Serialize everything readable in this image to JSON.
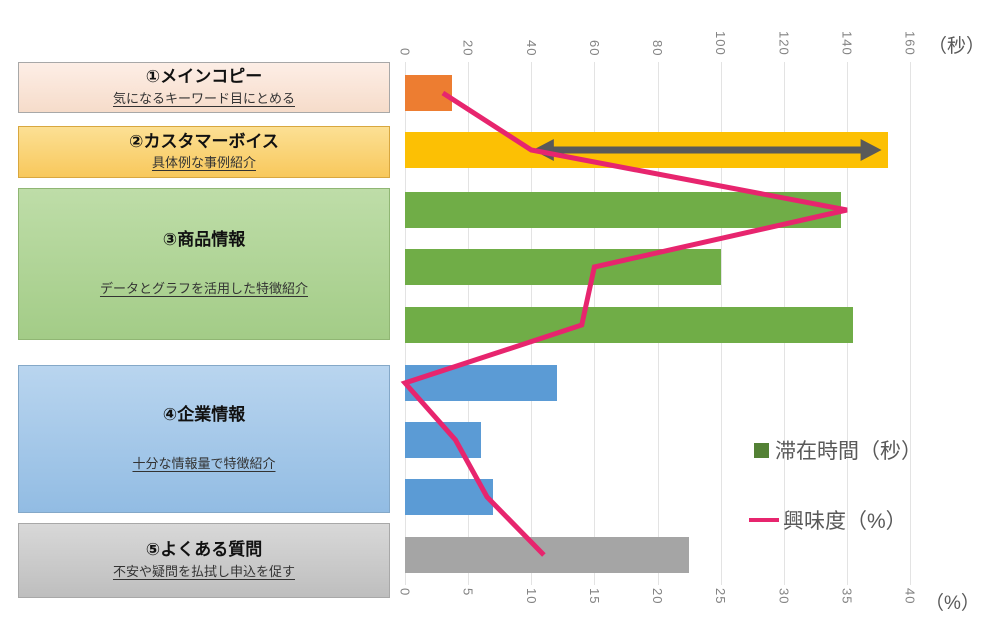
{
  "panel": {
    "sections": [
      {
        "title": "①メインコピー",
        "subtitle": "気になるキーワード目にとめる",
        "size": "small",
        "bg_top": "#fdeee6",
        "bg_bottom": "#f6dcca",
        "border": "#a8a8a8"
      },
      {
        "title": "②カスタマーボイス",
        "subtitle": "具体例な事例紹介",
        "size": "small",
        "bg_top": "#fce094",
        "bg_bottom": "#f8c85c",
        "border": "#d8a73f"
      },
      {
        "title": "③商品情報",
        "subtitle": "データとグラフを活用した特徴紹介",
        "size": "large",
        "bg_top": "#bedda8",
        "bg_bottom": "#a3cc87",
        "border": "#90b674"
      },
      {
        "title": "④企業情報",
        "subtitle": "十分な情報量で特徴紹介",
        "size": "large",
        "bg_top": "#b9d5ef",
        "bg_bottom": "#92bce3",
        "border": "#84a8c8"
      },
      {
        "title": "⑤よくある質問",
        "subtitle": "不安や疑問を払拭し申込を促す",
        "size": "small",
        "bg_top": "#d8d8d8",
        "bg_bottom": "#bebebe",
        "border": "#a8a8a8"
      }
    ]
  },
  "chart_data": {
    "type": "bar",
    "subtype": "horizontal-bars-with-line-overlay-dual-axis",
    "title": "",
    "top_axis": {
      "label": "（秒）",
      "ticks": [
        0,
        20,
        40,
        60,
        80,
        100,
        120,
        140,
        160
      ],
      "range": [
        0,
        160
      ]
    },
    "bottom_axis": {
      "label": "（%）",
      "ticks": [
        0,
        5,
        10,
        15,
        20,
        25,
        30,
        35,
        40
      ],
      "range": [
        0,
        40
      ]
    },
    "categories": [
      "①メインコピー",
      "②カスタマーボイス",
      "③商品情報",
      "③商品情報",
      "③商品情報",
      "④企業情報",
      "④企業情報",
      "④企業情報",
      "⑤よくある質問"
    ],
    "series": [
      {
        "name": "滞在時間（秒）",
        "type": "bar",
        "axis": "top",
        "unit": "秒",
        "values": [
          15,
          153,
          138,
          100,
          142,
          48,
          24,
          28,
          90
        ],
        "bar_colors": [
          "#ed7d31",
          "#fcc004",
          "#70ad47",
          "#70ad47",
          "#70ad47",
          "#5b9bd5",
          "#5b9bd5",
          "#5b9bd5",
          "#a5a5a5"
        ]
      },
      {
        "name": "興味度（%）",
        "type": "line",
        "axis": "bottom",
        "unit": "%",
        "values": [
          3,
          10,
          35,
          15,
          14,
          0,
          4,
          6.5,
          11
        ],
        "color": "#e7256e"
      }
    ],
    "annotation": {
      "type": "double-headed-arrow",
      "row_index": 1,
      "from_sec": 40.5,
      "to_sec": 151,
      "color": "#595959"
    },
    "grid": true,
    "legend_position": "right-middle"
  },
  "legend": [
    {
      "swatch": "square",
      "color": "#538135",
      "label": "滞在時間（秒）"
    },
    {
      "swatch": "line",
      "color": "#e7256e",
      "label": "興味度（%）"
    }
  ]
}
